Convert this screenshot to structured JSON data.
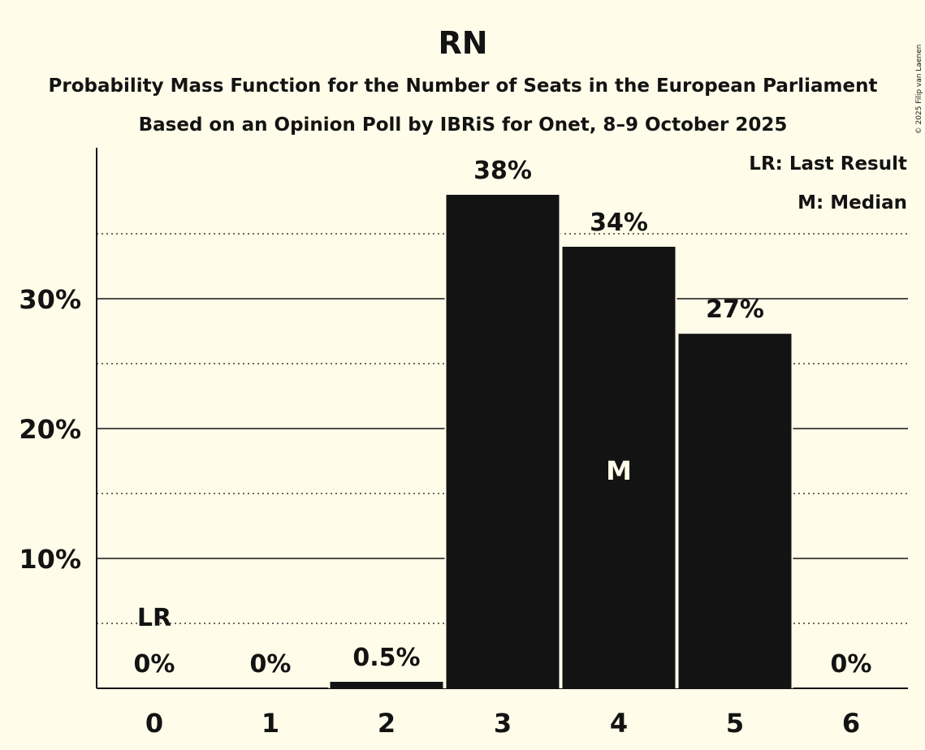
{
  "chart_data": {
    "type": "bar",
    "title": "RN",
    "subtitle": "Probability Mass Function for the Number of Seats in the European Parliament",
    "subtitle2": "Based on an Opinion Poll by IBRiS for Onet, 8–9 October 2025",
    "copyright": "© 2025 Filip van Laenen",
    "categories": [
      "0",
      "1",
      "2",
      "3",
      "4",
      "5",
      "6"
    ],
    "values": [
      0,
      0,
      0.5,
      38,
      34,
      27.3,
      0
    ],
    "value_labels": [
      "0%",
      "0%",
      "0.5%",
      "38%",
      "34%",
      "27%",
      "0%"
    ],
    "yticks": [
      {
        "value": 10,
        "label": "10%"
      },
      {
        "value": 20,
        "label": "20%"
      },
      {
        "value": 30,
        "label": "30%"
      }
    ],
    "minor_gridlines": [
      5,
      15,
      25,
      35
    ],
    "ylim": [
      0,
      40
    ],
    "last_result": {
      "index": 0,
      "label": "LR"
    },
    "median": {
      "index": 4,
      "label": "M"
    },
    "legend": {
      "placement": "top-right",
      "items": [
        "LR: Last Result",
        "M: Median"
      ]
    },
    "grid": true,
    "colors": {
      "background": "#fffde9",
      "bar": "#131313",
      "text": "#131313",
      "median_text": "#fffde9"
    }
  }
}
